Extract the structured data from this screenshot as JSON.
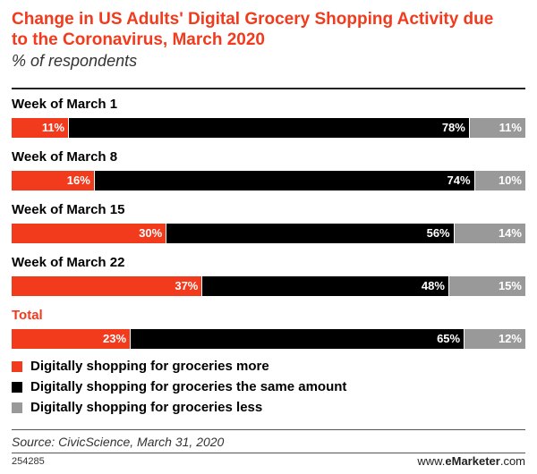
{
  "chart_data": {
    "type": "bar",
    "stacked": true,
    "orientation": "horizontal",
    "title": "Change in US Adults' Digital Grocery Shopping Activity due to the Coronavirus, March 2020",
    "subtitle": "% of respondents",
    "categories": [
      "Week of March 1",
      "Week of March 8",
      "Week of March 15",
      "Week of March 22",
      "Total"
    ],
    "series": [
      {
        "name": "Digitally shopping for groceries more",
        "color": "#f23a1d",
        "values": [
          11,
          16,
          30,
          37,
          23
        ]
      },
      {
        "name": "Digitally shopping for groceries the same amount",
        "color": "#000000",
        "values": [
          78,
          74,
          56,
          48,
          65
        ]
      },
      {
        "name": "Digitally shopping for groceries less",
        "color": "#999999",
        "values": [
          11,
          10,
          14,
          15,
          12
        ]
      }
    ],
    "value_suffix": "%",
    "xlim": [
      0,
      100
    ],
    "legend_position": "bottom"
  },
  "footer": {
    "source": "Source: CivicScience, March 31, 2020",
    "chart_id": "254285",
    "brand_prefix": "www.",
    "brand_name": "eMarketer",
    "brand_suffix": ".com"
  },
  "colors": {
    "accent": "#f23a1d",
    "black": "#000000",
    "gray": "#999999"
  }
}
